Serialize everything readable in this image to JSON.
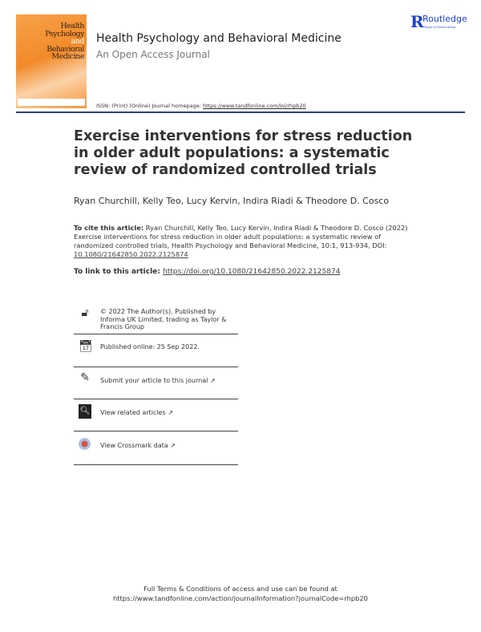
{
  "header": {
    "cover_text": "Health Psychology and Behavioral Medicine",
    "cover_lines": [
      "Health",
      "Psychology",
      "and",
      "Behavioral",
      "Medicine"
    ],
    "journal_title": "Health Psychology and Behavioral Medicine",
    "journal_subtitle": "An Open Access Journal",
    "issn_label": "ISSN: (Print) (Online) Journal homepage: ",
    "homepage_url": "https://www.tandfonline.com/loi/rhpb20",
    "publisher_logo": "Routledge",
    "publisher_tagline": "Taylor & Francis Group",
    "rule_color": "#2b3f7a"
  },
  "article": {
    "title": "Exercise interventions for stress reduction in older adult populations: a systematic review of randomized controlled trials",
    "authors": "Ryan Churchill, Kelly Teo, Lucy Kervin, Indira Riadi & Theodore D. Cosco",
    "cite_label": "To cite this article:",
    "cite_text": " Ryan Churchill, Kelly Teo, Lucy Kervin, Indira Riadi & Theodore D. Cosco (2022) Exercise interventions for stress reduction in older adult populations: a systematic review of randomized controlled trials, Health Psychology and Behavioral Medicine, 10:1, 913-934, DOI: ",
    "cite_doi": "10.1080/21642850.2022.2125874",
    "link_label": "To link to this article: ",
    "link_url": "https://doi.org/10.1080/21642850.2022.2125874"
  },
  "info": [
    {
      "icon": "open-access-icon",
      "text": "© 2022 The Author(s). Published by Informa UK Limited, trading as Taylor & Francis Group"
    },
    {
      "icon": "calendar-icon",
      "text": "Published online: 25 Sep 2022."
    },
    {
      "icon": "edit-icon",
      "text": "Submit your article to this journal"
    },
    {
      "icon": "related-articles-icon",
      "text": "View related articles"
    },
    {
      "icon": "crossmark-icon",
      "text": "View Crossmark data"
    }
  ],
  "footer": {
    "line1": "Full Terms & Conditions of access and use can be found at",
    "line2": "https://www.tandfonline.com/action/journalInformation?journalCode=rhpb20"
  }
}
